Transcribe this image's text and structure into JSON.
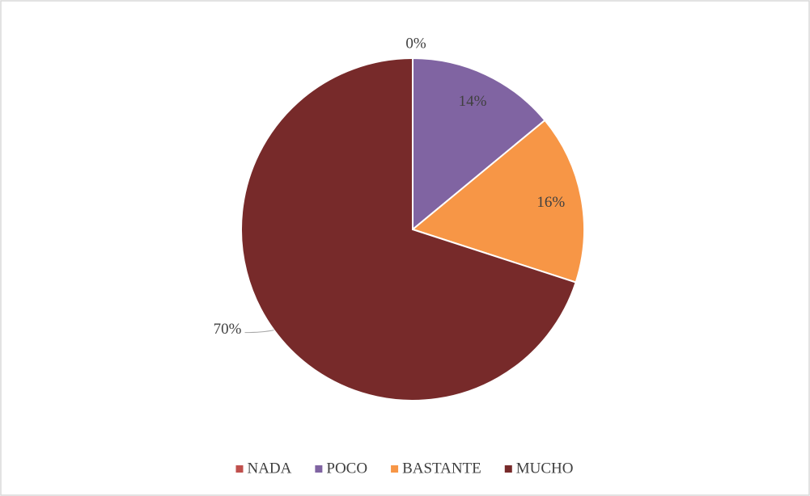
{
  "chart_data": {
    "type": "pie",
    "categories": [
      "NADA",
      "POCO",
      "BASTANTE",
      "MUCHO"
    ],
    "values": [
      0,
      14,
      16,
      70
    ],
    "value_labels": [
      "0%",
      "14%",
      "16%",
      "70%"
    ],
    "colors": [
      "#c0504d",
      "#8064a2",
      "#f79646",
      "#772a2a"
    ],
    "legend": "bottom"
  }
}
